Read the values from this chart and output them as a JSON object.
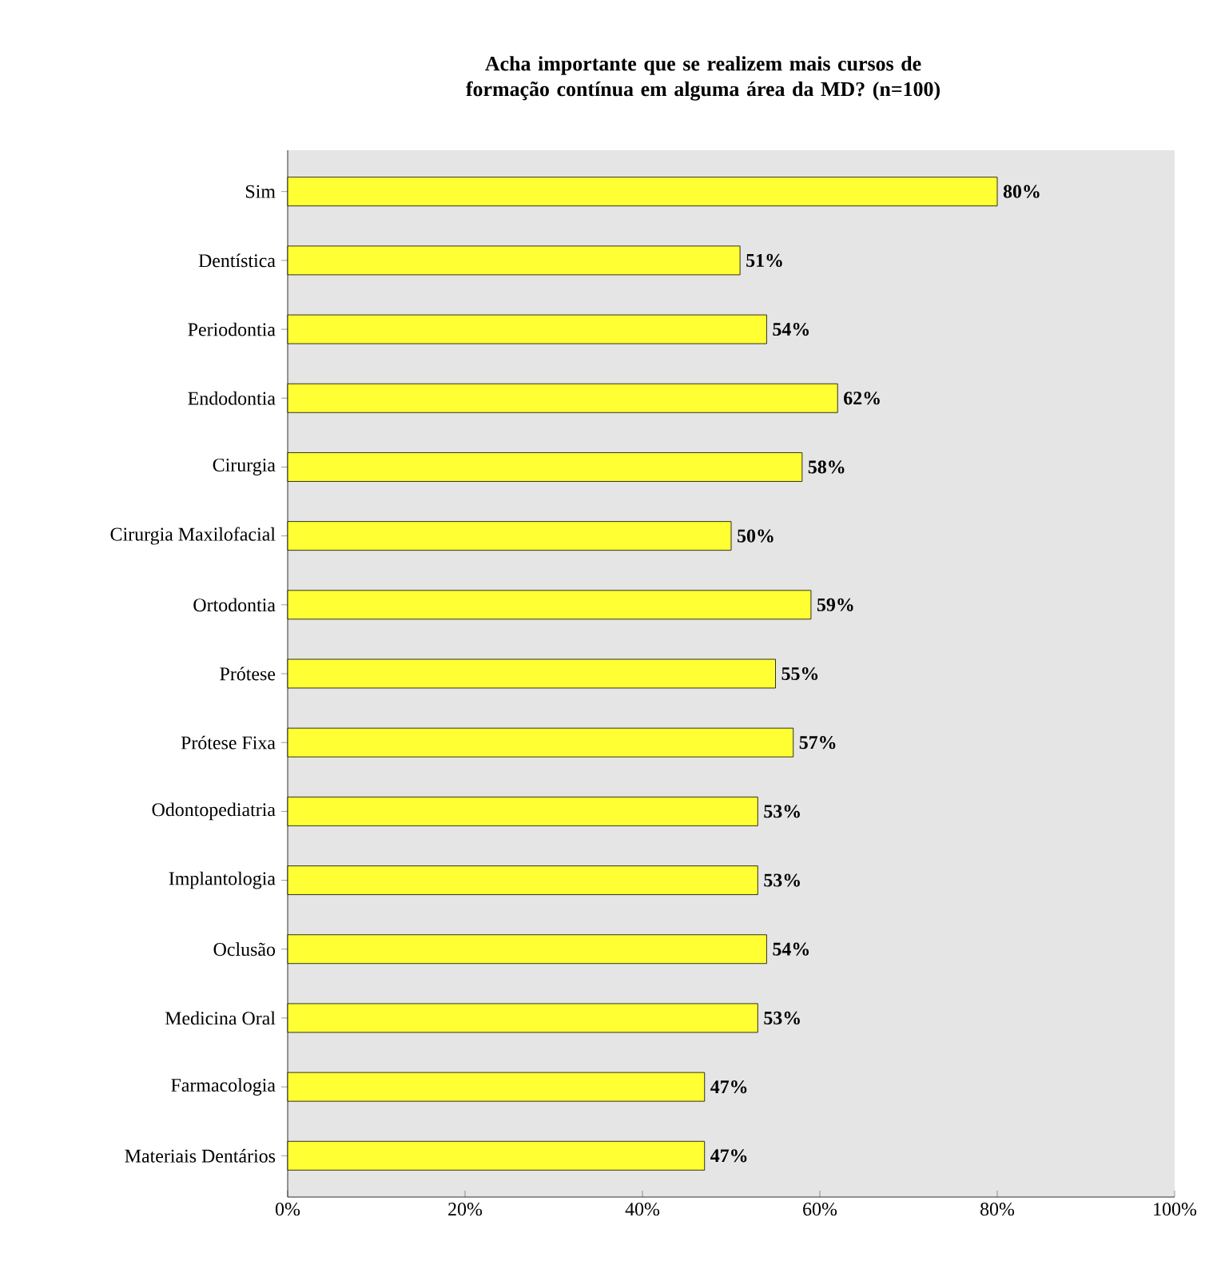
{
  "chart_data": {
    "type": "bar",
    "orientation": "horizontal",
    "title": "Acha importante que se realizem mais cursos de formação contínua em alguma área da MD? (n=100)",
    "categories": [
      "Sim",
      "Dentística",
      "Periodontia",
      "Endodontia",
      "Cirurgia",
      "Cirurgia Maxilofacial",
      "Ortodontia",
      "Prótese",
      "Prótese Fixa",
      "Odontopediatria",
      "Implantologia",
      "Oclusão",
      "Medicina Oral",
      "Farmacologia",
      "Materiais Dentários"
    ],
    "values": [
      80,
      51,
      54,
      62,
      58,
      50,
      59,
      55,
      57,
      53,
      53,
      54,
      53,
      47,
      47
    ],
    "value_labels": [
      "80%",
      "51%",
      "54%",
      "62%",
      "58%",
      "50%",
      "59%",
      "55%",
      "57%",
      "53%",
      "53%",
      "54%",
      "53%",
      "47%",
      "47%"
    ],
    "color": "#ffff33",
    "xlim": [
      0,
      100
    ],
    "xticks": [
      {
        "value": 0,
        "label": "0%"
      },
      {
        "value": 20,
        "label": "20%"
      },
      {
        "value": 40,
        "label": "40%"
      },
      {
        "value": 60,
        "label": "60%"
      },
      {
        "value": 80,
        "label": "80%"
      },
      {
        "value": 100,
        "label": "100%"
      }
    ]
  }
}
